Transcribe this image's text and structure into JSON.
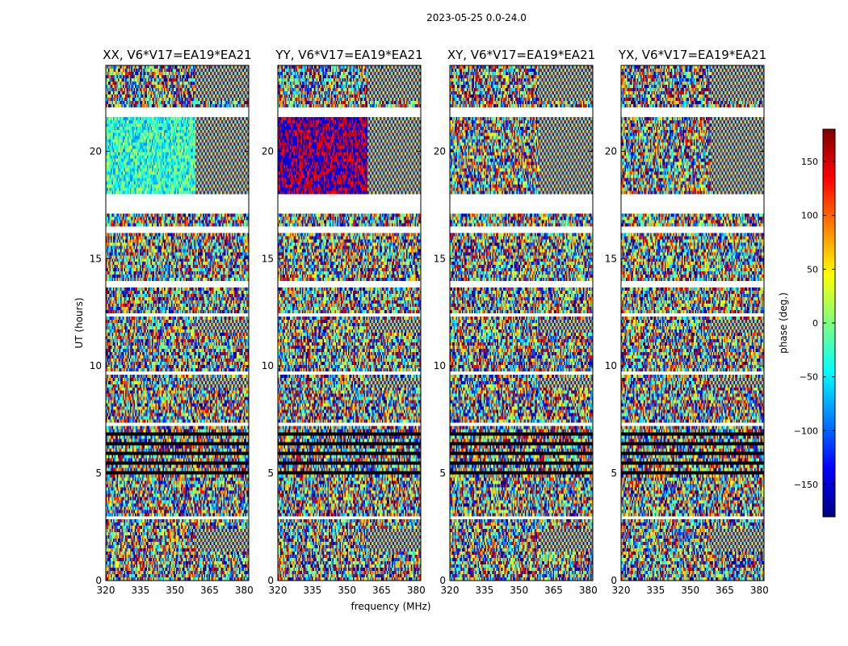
{
  "figure": {
    "suptitle": "2023-05-25 0.0-24.0",
    "xlabel": "frequency (MHz)",
    "ylabel": "UT (hours)"
  },
  "colorbar": {
    "label": "phase (deg.)",
    "ticks": [
      150,
      100,
      50,
      0,
      -50,
      -100,
      -150
    ],
    "tick_labels": [
      "150",
      "100",
      "50",
      "0",
      "−50",
      "−100",
      "−150"
    ],
    "range": [
      -180,
      180
    ],
    "colormap": "jet",
    "colormap_stops": [
      "#00007f",
      "#0000ff",
      "#007fff",
      "#00ffff",
      "#7fff7f",
      "#ffff00",
      "#ff7f00",
      "#ff0000",
      "#7f0000"
    ]
  },
  "chart_data": [
    {
      "type": "heatmap",
      "title": "XX, V6*V17=EA19*EA21",
      "xlabel": "frequency (MHz)",
      "ylabel": "UT (hours)",
      "xlim": [
        320,
        382
      ],
      "ylim": [
        0,
        24
      ],
      "xticks": [
        320,
        335,
        350,
        365,
        380
      ],
      "yticks": [
        0,
        5,
        10,
        15,
        20
      ],
      "value": "phase (deg.)",
      "value_range": [
        -180,
        180
      ]
    },
    {
      "type": "heatmap",
      "title": "YY, V6*V17=EA19*EA21",
      "xlabel": "frequency (MHz)",
      "ylabel": "UT (hours)",
      "xlim": [
        320,
        382
      ],
      "ylim": [
        0,
        24
      ],
      "xticks": [
        320,
        335,
        350,
        365,
        380
      ],
      "yticks": [
        0,
        5,
        10,
        15,
        20
      ],
      "value": "phase (deg.)",
      "value_range": [
        -180,
        180
      ]
    },
    {
      "type": "heatmap",
      "title": "XY, V6*V17=EA19*EA21",
      "xlabel": "frequency (MHz)",
      "ylabel": "UT (hours)",
      "xlim": [
        320,
        382
      ],
      "ylim": [
        0,
        24
      ],
      "xticks": [
        320,
        335,
        350,
        365,
        380
      ],
      "yticks": [
        0,
        5,
        10,
        15,
        20
      ],
      "value": "phase (deg.)",
      "value_range": [
        -180,
        180
      ]
    },
    {
      "type": "heatmap",
      "title": "YX, V6*V17=EA19*EA21",
      "xlabel": "frequency (MHz)",
      "ylabel": "UT (hours)",
      "xlim": [
        320,
        382
      ],
      "ylim": [
        0,
        24
      ],
      "xticks": [
        320,
        335,
        350,
        365,
        380
      ],
      "yticks": [
        0,
        5,
        10,
        15,
        20
      ],
      "value": "phase (deg.)",
      "value_range": [
        -180,
        180
      ]
    }
  ],
  "flagged_ut_ranges": [
    [
      17.1,
      18.0
    ],
    [
      21.6,
      22.0
    ],
    [
      16.2,
      16.5
    ],
    [
      13.6,
      13.9
    ],
    [
      12.3,
      12.4
    ],
    [
      10.0,
      10.1
    ],
    [
      9.6,
      9.7
    ],
    [
      7.2,
      7.3
    ],
    [
      2.9,
      3.0
    ]
  ],
  "fringe_ut_ranges": [
    [
      22.4,
      24.0
    ],
    [
      18.0,
      21.6
    ],
    [
      11.6,
      12.2
    ],
    [
      9.0,
      9.5
    ],
    [
      1.4,
      2.4
    ]
  ]
}
